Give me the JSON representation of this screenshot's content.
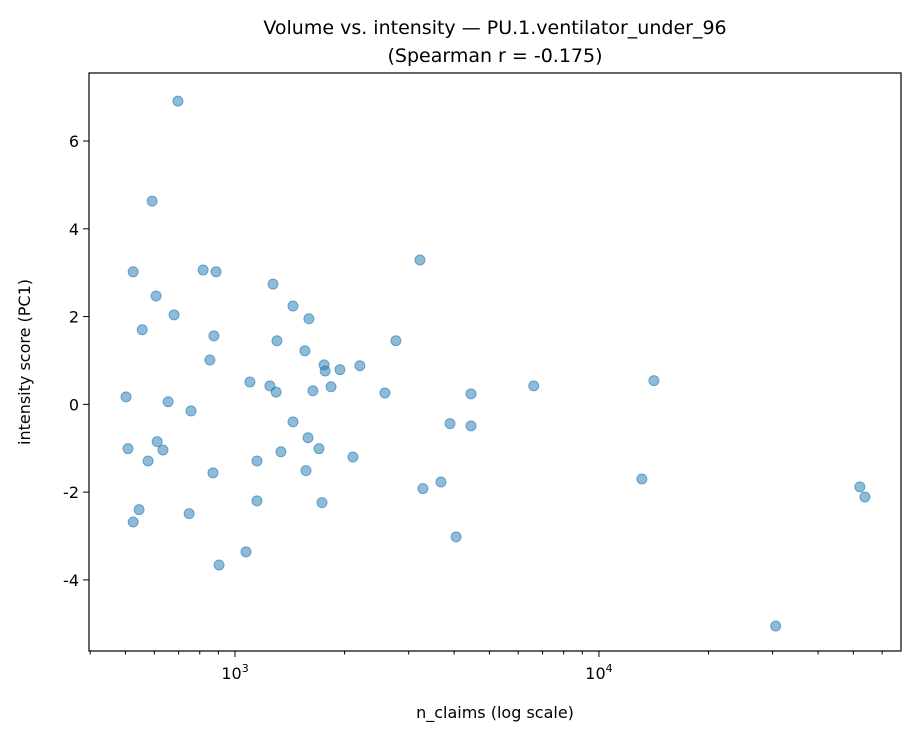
{
  "chart_data": {
    "type": "scatter",
    "title": "Volume vs. intensity — PU.1.ventilator_under_96",
    "subtitle": "(Spearman r = -0.175)",
    "xlabel": "n_claims (log scale)",
    "ylabel": "intensity score (PC1)",
    "xscale": "log",
    "xlim": [
      397,
      67600
    ],
    "ylim": [
      -5.62,
      7.55
    ],
    "xticks": [
      {
        "value": 1000,
        "base": "10",
        "exp": "3"
      },
      {
        "value": 10000,
        "base": "10",
        "exp": "4"
      }
    ],
    "yticks": [
      -4,
      -2,
      0,
      2,
      4,
      6
    ],
    "grid": false,
    "color": "#1f77b4",
    "points": [
      [
        697,
        6.91
      ],
      [
        592,
        4.63
      ],
      [
        525,
        3.02
      ],
      [
        607,
        2.47
      ],
      [
        556,
        1.7
      ],
      [
        680,
        2.04
      ],
      [
        817,
        3.06
      ],
      [
        887,
        3.02
      ],
      [
        875,
        1.56
      ],
      [
        853,
        1.01
      ],
      [
        502,
        0.17
      ],
      [
        655,
        0.06
      ],
      [
        757,
        -0.15
      ],
      [
        508,
        -1.01
      ],
      [
        611,
        -0.85
      ],
      [
        634,
        -1.04
      ],
      [
        577,
        -1.29
      ],
      [
        545,
        -2.4
      ],
      [
        525,
        -2.68
      ],
      [
        748,
        -2.49
      ],
      [
        870,
        -1.56
      ],
      [
        904,
        -3.66
      ],
      [
        1072,
        -3.36
      ],
      [
        1149,
        -2.2
      ],
      [
        1149,
        -1.29
      ],
      [
        1099,
        0.51
      ],
      [
        1247,
        0.42
      ],
      [
        1297,
        0.28
      ],
      [
        1272,
        2.74
      ],
      [
        1304,
        1.45
      ],
      [
        1443,
        2.24
      ],
      [
        1443,
        -0.4
      ],
      [
        1337,
        -1.08
      ],
      [
        1596,
        1.95
      ],
      [
        1556,
        1.22
      ],
      [
        1587,
        -0.76
      ],
      [
        1567,
        -1.51
      ],
      [
        1637,
        0.31
      ],
      [
        1701,
        -1.01
      ],
      [
        1734,
        -2.24
      ],
      [
        1757,
        0.9
      ],
      [
        1769,
        0.76
      ],
      [
        1836,
        0.4
      ],
      [
        1942,
        0.79
      ],
      [
        2203,
        0.88
      ],
      [
        2109,
        -1.2
      ],
      [
        2582,
        0.26
      ],
      [
        2767,
        1.45
      ],
      [
        3222,
        3.29
      ],
      [
        3283,
        -1.92
      ],
      [
        3680,
        -1.77
      ],
      [
        3897,
        -0.44
      ],
      [
        4050,
        -3.02
      ],
      [
        4450,
        0.24
      ],
      [
        4450,
        -0.49
      ],
      [
        6620,
        0.42
      ],
      [
        14160,
        0.54
      ],
      [
        13120,
        -1.7
      ],
      [
        30600,
        -5.05
      ],
      [
        52100,
        -1.88
      ],
      [
        53800,
        -2.11
      ]
    ]
  }
}
